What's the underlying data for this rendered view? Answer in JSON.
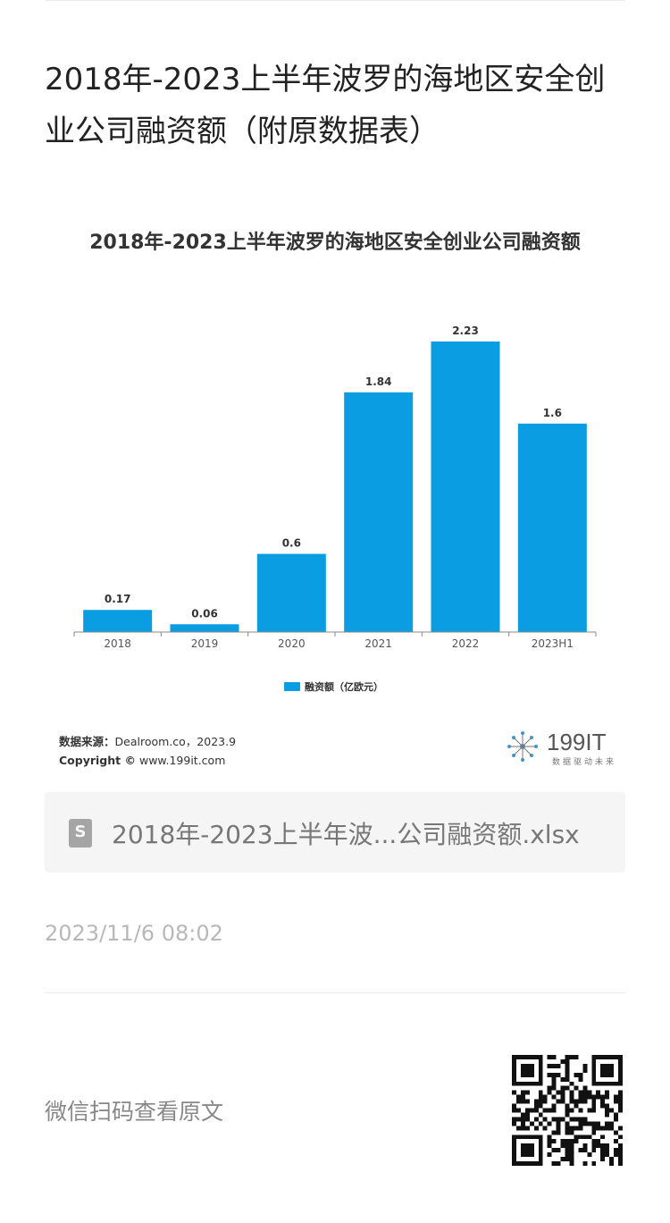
{
  "article": {
    "title": "2018年-2023上半年波罗的海地区安全创业公司融资额（附原数据表）"
  },
  "chart": {
    "source_label": "数据来源：",
    "source_value": "Dealroom.co，2023.9",
    "copyright_label": "Copyright ©",
    "copyright_value": "www.199it.com"
  },
  "logo": {
    "text": "199IT",
    "subtitle": "数据驱动未来"
  },
  "attachment": {
    "file_name": "2018年-2023上半年波...公司融资额.xlsx",
    "icon": "spreadsheet-icon",
    "icon_letter": "S"
  },
  "meta": {
    "date": "2023/11/6 08:02",
    "scan_prompt": "微信扫码查看原文"
  },
  "colors": {
    "bar": "#0a9de2",
    "axis": "#888888"
  },
  "chart_data": {
    "type": "bar",
    "title": "2018年-2023上半年波罗的海地区安全创业公司融资额",
    "categories": [
      "2018",
      "2019",
      "2020",
      "2021",
      "2022",
      "2023H1"
    ],
    "series": [
      {
        "name": "融资额（亿欧元）",
        "values": [
          0.17,
          0.06,
          0.6,
          1.84,
          2.23,
          1.6
        ]
      }
    ],
    "ylim": [
      0,
      2.23
    ],
    "grid": false,
    "legend": "bottom",
    "data_labels": [
      "0.17",
      "0.06",
      "0.6",
      "1.84",
      "2.23",
      "1.6"
    ]
  }
}
